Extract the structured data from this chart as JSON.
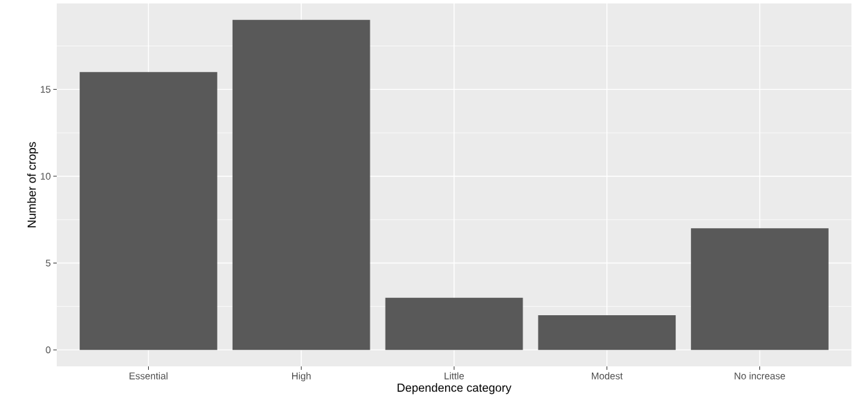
{
  "chart_data": {
    "type": "bar",
    "xlabel": "Dependence category",
    "ylabel": "Number of crops",
    "categories": [
      "Essential",
      "High",
      "Little",
      "Modest",
      "No increase"
    ],
    "values": [
      16,
      19,
      3,
      2,
      7
    ],
    "color": "#595959",
    "ylim": [
      -0.95,
      19.95
    ],
    "yticks": [
      0,
      5,
      10,
      15
    ],
    "grid": true
  }
}
